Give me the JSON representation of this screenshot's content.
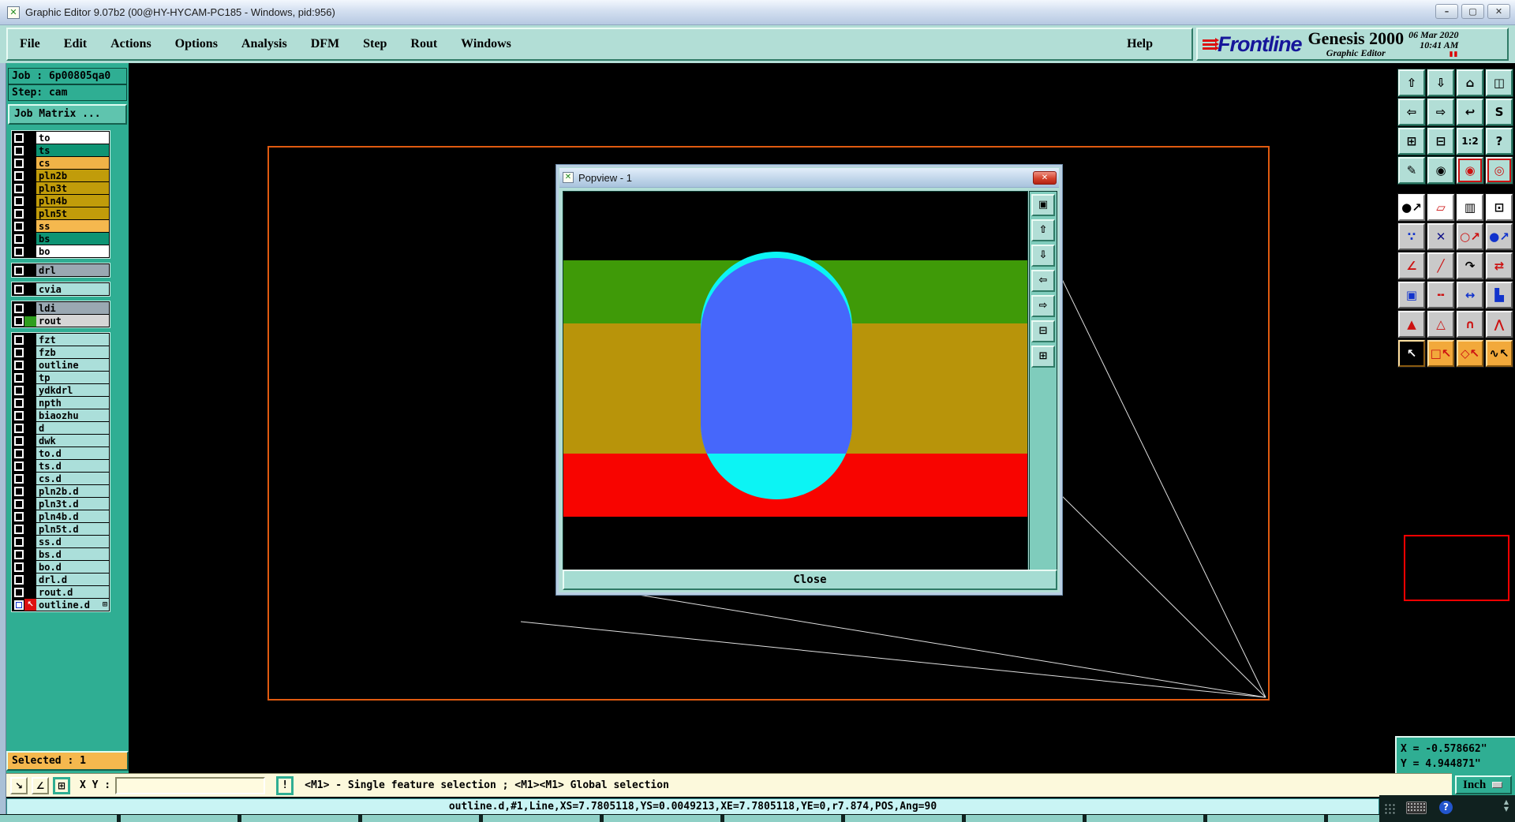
{
  "window": {
    "title": "Graphic Editor 9.07b2 (00@HY-HYCAM-PC185 - Windows, pid:956)",
    "controls": [
      {
        "name": "minimize-button",
        "glyph": "–"
      },
      {
        "name": "maximize-button",
        "glyph": "▢"
      },
      {
        "name": "close-button",
        "glyph": "✕"
      }
    ]
  },
  "menubar": {
    "items": [
      "File",
      "Edit",
      "Actions",
      "Options",
      "Analysis",
      "DFM",
      "Step",
      "Rout",
      "Windows"
    ],
    "help": "Help"
  },
  "brand": {
    "name": "Frontline",
    "product": "Genesis 2000",
    "subtitle": "Graphic Editor",
    "date": "06 Mar 2020",
    "time": "10:41 AM",
    "pause": "▮▮"
  },
  "sidebar": {
    "job": "Job : 6p00805qa0",
    "step": "Step: cam",
    "matrix_button": "Job Matrix ...",
    "layer_groups": [
      {
        "layers": [
          {
            "name": "to",
            "bg": "#ffffff"
          },
          {
            "name": "ts",
            "bg": "#0e9474"
          },
          {
            "name": "cs",
            "bg": "#f0b347"
          },
          {
            "name": "pln2b",
            "bg": "#c19c0a"
          },
          {
            "name": "pln3t",
            "bg": "#c19c0a"
          },
          {
            "name": "pln4b",
            "bg": "#c19c0a"
          },
          {
            "name": "pln5t",
            "bg": "#c19c0a"
          },
          {
            "name": "ss",
            "bg": "#f5b84e"
          },
          {
            "name": "bs",
            "bg": "#0e9474"
          },
          {
            "name": "bo",
            "bg": "#ffffff"
          }
        ]
      },
      {
        "layers": [
          {
            "name": "drl",
            "bg": "#9aa8b2"
          }
        ]
      },
      {
        "layers": [
          {
            "name": "cvia",
            "bg": "#abdfda"
          }
        ]
      },
      {
        "layers": [
          {
            "name": "ldi",
            "bg": "#9aa8b2"
          },
          {
            "name": "rout",
            "bg": "#d6d6d6",
            "swatch": "#2f9e1e"
          }
        ]
      },
      {
        "layers": [
          {
            "name": "fzt",
            "bg": "#abdfda"
          },
          {
            "name": "fzb",
            "bg": "#abdfda"
          },
          {
            "name": "outline",
            "bg": "#abdfda"
          },
          {
            "name": "tp",
            "bg": "#abdfda"
          },
          {
            "name": "ydkdrl",
            "bg": "#abdfda"
          },
          {
            "name": "npth",
            "bg": "#abdfda"
          },
          {
            "name": "biaozhu",
            "bg": "#abdfda"
          },
          {
            "name": "d",
            "bg": "#abdfda"
          },
          {
            "name": "dwk",
            "bg": "#abdfda"
          },
          {
            "name": "to.d",
            "bg": "#abdfda"
          },
          {
            "name": "ts.d",
            "bg": "#abdfda"
          },
          {
            "name": "cs.d",
            "bg": "#abdfda"
          },
          {
            "name": "pln2b.d",
            "bg": "#abdfda"
          },
          {
            "name": "pln3t.d",
            "bg": "#abdfda"
          },
          {
            "name": "pln4b.d",
            "bg": "#abdfda"
          },
          {
            "name": "pln5t.d",
            "bg": "#abdfda"
          },
          {
            "name": "ss.d",
            "bg": "#abdfda"
          },
          {
            "name": "bs.d",
            "bg": "#abdfda"
          },
          {
            "name": "bo.d",
            "bg": "#abdfda"
          },
          {
            "name": "drl.d",
            "bg": "#abdfda"
          },
          {
            "name": "rout.d",
            "bg": "#abdfda"
          },
          {
            "name": "outline.d",
            "bg": "#abdfda",
            "checked": true,
            "marker": "arrow",
            "suffix": "⊞"
          }
        ]
      }
    ]
  },
  "popview": {
    "title": "Popview - 1",
    "close_glyph": "✕",
    "close_label": "Close",
    "bands": {
      "green": "#3f9a08",
      "olive": "#b8940a",
      "red": "#f80400"
    },
    "capsule": {
      "outer": "#0cf4f4",
      "inner": "#4667fb"
    },
    "side_icons": [
      {
        "name": "clone-view-icon",
        "glyph": "▣"
      },
      {
        "name": "pan-up-icon",
        "glyph": "⇧"
      },
      {
        "name": "pan-down-icon",
        "glyph": "⇩"
      },
      {
        "name": "pan-left-icon",
        "glyph": "⇦"
      },
      {
        "name": "pan-right-icon",
        "glyph": "⇨"
      },
      {
        "name": "zoom-fit-icon",
        "glyph": "⊟"
      },
      {
        "name": "zoom-extents-icon",
        "glyph": "⊞"
      }
    ]
  },
  "toolbar": {
    "rows": [
      {
        "style": "teal",
        "items": [
          {
            "name": "pan-up-icon",
            "glyph": "⇧"
          },
          {
            "name": "pan-down-icon",
            "glyph": "⇩"
          },
          {
            "name": "zoom-home-icon",
            "glyph": "⌂"
          },
          {
            "name": "split-view-xy-icon",
            "glyph": "◫"
          }
        ]
      },
      {
        "style": "teal",
        "items": [
          {
            "name": "pan-left-icon",
            "glyph": "⇦"
          },
          {
            "name": "pan-right-icon",
            "glyph": "⇨"
          },
          {
            "name": "previous-view-icon",
            "glyph": "↩"
          },
          {
            "name": "redraw-icon",
            "glyph": "S"
          }
        ]
      },
      {
        "style": "teal",
        "items": [
          {
            "name": "zoom-extents-icon",
            "glyph": "⊞"
          },
          {
            "name": "zoom-fit-icon",
            "glyph": "⊟"
          },
          {
            "name": "scale-1-2-icon",
            "glyph": "1:2"
          },
          {
            "name": "help-icon",
            "glyph": "?"
          }
        ]
      },
      {
        "style": "teal",
        "items": [
          {
            "name": "tools-palette-icon",
            "glyph": "✎"
          },
          {
            "name": "origin-probe-icon",
            "glyph": "◉"
          },
          {
            "name": "netlist-red-icon",
            "glyph": "◉",
            "fg": "#cc1111",
            "frame": true
          },
          {
            "name": "netlist-compare-icon",
            "glyph": "◎",
            "fg": "#cc1111",
            "frame": true
          }
        ]
      },
      {
        "style": "white",
        "items": [
          {
            "name": "transform-feature-icon",
            "glyph": "●↗"
          },
          {
            "name": "reshape-polygon-icon",
            "glyph": "▱",
            "fg": "#cc1111"
          },
          {
            "name": "measure-ruler-icon",
            "glyph": "▥"
          },
          {
            "name": "select-area-icon",
            "glyph": "⊡"
          }
        ]
      },
      {
        "style": "gray",
        "items": [
          {
            "name": "net-endpoints-icon",
            "glyph": "∵",
            "fg": "#1133cc"
          },
          {
            "name": "delete-feature-icon",
            "glyph": "✕",
            "fg": "#111188"
          },
          {
            "name": "copy-feature-icon",
            "glyph": "○↗",
            "fg": "#cc1111"
          },
          {
            "name": "move-feature-icon",
            "glyph": "●↗",
            "fg": "#1133cc"
          }
        ]
      },
      {
        "style": "gray",
        "items": [
          {
            "name": "angle-line-icon",
            "glyph": "∠",
            "fg": "#cc1111"
          },
          {
            "name": "slant-line-icon",
            "glyph": "╱",
            "fg": "#cc1111"
          },
          {
            "name": "rotate-feature-icon",
            "glyph": "↷"
          },
          {
            "name": "mirror-feature-icon",
            "glyph": "⇄",
            "fg": "#cc1111"
          }
        ]
      },
      {
        "style": "gray",
        "items": [
          {
            "name": "copy-to-layer-icon",
            "glyph": "▣",
            "fg": "#1133cc"
          },
          {
            "name": "break-line-icon",
            "glyph": "╍",
            "fg": "#cc1111"
          },
          {
            "name": "measure-distance-icon",
            "glyph": "↔",
            "fg": "#1133cc"
          },
          {
            "name": "surface-fill-icon",
            "glyph": "▙",
            "fg": "#1133cc"
          }
        ]
      },
      {
        "style": "gray",
        "items": [
          {
            "name": "arc-corner-icon",
            "glyph": "▲",
            "fg": "#cc1111"
          },
          {
            "name": "arc-peak-icon",
            "glyph": "△",
            "fg": "#cc1111"
          },
          {
            "name": "arc-bridge-icon",
            "glyph": "∩",
            "fg": "#cc1111"
          },
          {
            "name": "arc-span-icon",
            "glyph": "⋀",
            "fg": "#cc1111"
          }
        ]
      },
      {
        "style": "orange",
        "items": [
          {
            "name": "select-single-cursor-icon",
            "glyph": "↖",
            "active": true
          },
          {
            "name": "select-frame-cursor-icon",
            "glyph": "□↖",
            "fg": "#cc1111"
          },
          {
            "name": "select-polygon-cursor-icon",
            "glyph": "◇↖",
            "fg": "#cc1111"
          },
          {
            "name": "select-net-cursor-icon",
            "glyph": "∿↖"
          }
        ]
      }
    ]
  },
  "status": {
    "selected": "Selected : 1",
    "xy_label": "X Y :",
    "xy_value": "",
    "bang": "!",
    "hint": "<M1> - Single feature selection ; <M1><M1> Global selection",
    "coord_x": "X = -0.578662\"",
    "coord_y": "Y = 4.944871\"",
    "unit": "Inch",
    "feature": "outline.d,#1,Line,XS=7.7805118,YS=0.0049213,XE=7.7805118,YE=0,r7.874,POS,Ang=90"
  },
  "cmdbar": {
    "buttons": [
      {
        "name": "snap-mode-icon",
        "glyph": "↘"
      },
      {
        "name": "angle-mode-icon",
        "glyph": "∠"
      },
      {
        "name": "grid-mode-icon",
        "glyph": "⊞",
        "active": true
      }
    ]
  },
  "langbar": {
    "help": "?",
    "up": "▲",
    "down": "▼"
  }
}
